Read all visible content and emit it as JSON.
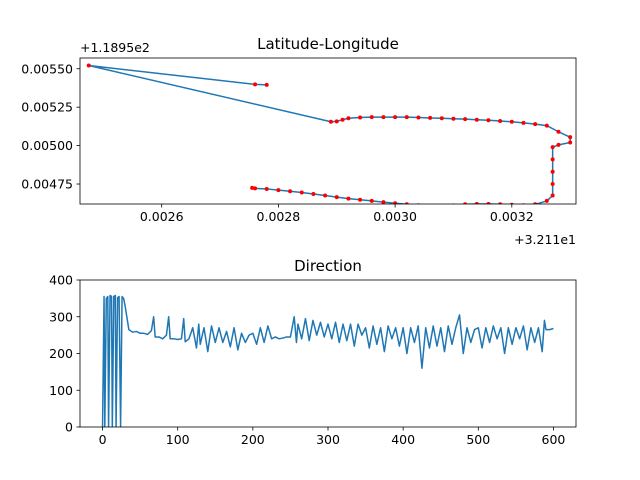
{
  "chart_data": [
    {
      "type": "scatter",
      "title": "Latitude-Longitude",
      "x_offset_label": "+3.211e1",
      "y_offset_label": "+1.1895e2",
      "xlim": [
        0.00246,
        0.00331
      ],
      "ylim": [
        0.00462,
        0.00557
      ],
      "x_ticks": [
        "0.0026",
        "0.0028",
        "0.0030",
        "0.0032"
      ],
      "x_tick_values": [
        0.0026,
        0.0028,
        0.003,
        0.0032
      ],
      "y_ticks": [
        "0.00475",
        "0.00500",
        "0.00525",
        "0.00550"
      ],
      "y_tick_values": [
        0.00475,
        0.005,
        0.00525,
        0.0055
      ],
      "line_color": "#1f77b4",
      "marker_color": "#ff0000",
      "x": [
        0.00278,
        0.00276,
        0.002475,
        0.00289,
        0.0029,
        0.00291,
        0.00292,
        0.00294,
        0.00296,
        0.00298,
        0.003,
        0.00302,
        0.00304,
        0.00306,
        0.00308,
        0.0031,
        0.00312,
        0.00314,
        0.00316,
        0.00318,
        0.0032,
        0.00322,
        0.00324,
        0.00326,
        0.00328,
        0.0033,
        0.0033,
        0.00328,
        0.00327,
        0.00327,
        0.00327,
        0.00327,
        0.00327,
        0.00326,
        0.00324,
        0.00322,
        0.0032,
        0.00318,
        0.00316,
        0.00314,
        0.00312,
        0.0031,
        0.00308,
        0.00306,
        0.00304,
        0.00302,
        0.003,
        0.00298,
        0.00296,
        0.00294,
        0.00292,
        0.0029,
        0.00288,
        0.00286,
        0.00284,
        0.00282,
        0.0028,
        0.00278,
        0.00276,
        0.002755
      ],
      "y": [
        0.005395,
        0.005398,
        0.005521,
        0.005155,
        0.005158,
        0.005168,
        0.005178,
        0.005183,
        0.005185,
        0.005185,
        0.005185,
        0.005185,
        0.005183,
        0.00518,
        0.005178,
        0.005175,
        0.005172,
        0.005168,
        0.005165,
        0.00516,
        0.005155,
        0.005148,
        0.00514,
        0.00513,
        0.00509,
        0.005055,
        0.00502,
        0.005005,
        0.00499,
        0.00491,
        0.00483,
        0.00475,
        0.004675,
        0.00464,
        0.004618,
        0.004612,
        0.004615,
        0.004618,
        0.00462,
        0.00462,
        0.004618,
        0.00461,
        0.004605,
        0.004605,
        0.004612,
        0.004618,
        0.004625,
        0.004632,
        0.00464,
        0.004648,
        0.004655,
        0.004665,
        0.004675,
        0.004685,
        0.004695,
        0.004703,
        0.00471,
        0.004718,
        0.004722,
        0.004725
      ]
    },
    {
      "type": "line",
      "title": "Direction",
      "xlim": [
        -30,
        630
      ],
      "ylim": [
        0,
        400
      ],
      "x_ticks": [
        "0",
        "100",
        "200",
        "300",
        "400",
        "500",
        "600"
      ],
      "x_tick_values": [
        0,
        100,
        200,
        300,
        400,
        500,
        600
      ],
      "y_ticks": [
        "0",
        "100",
        "200",
        "300",
        "400"
      ],
      "y_tick_values": [
        0,
        100,
        200,
        300,
        400
      ],
      "line_color": "#1f77b4",
      "x": [
        0,
        2,
        3,
        5,
        7,
        8,
        10,
        12,
        13,
        15,
        17,
        18,
        20,
        22,
        24,
        26,
        28,
        30,
        35,
        40,
        45,
        50,
        55,
        60,
        65,
        68,
        70,
        75,
        80,
        85,
        88,
        90,
        95,
        100,
        105,
        108,
        110,
        115,
        120,
        125,
        128,
        130,
        135,
        140,
        145,
        150,
        155,
        160,
        165,
        170,
        175,
        180,
        185,
        190,
        195,
        200,
        205,
        210,
        215,
        220,
        225,
        230,
        235,
        240,
        245,
        250,
        255,
        258,
        260,
        265,
        270,
        275,
        280,
        285,
        290,
        295,
        300,
        305,
        310,
        315,
        320,
        325,
        330,
        335,
        340,
        345,
        350,
        355,
        360,
        365,
        370,
        375,
        380,
        385,
        390,
        395,
        400,
        405,
        410,
        415,
        420,
        425,
        430,
        435,
        440,
        445,
        450,
        455,
        460,
        465,
        470,
        475,
        480,
        485,
        490,
        495,
        500,
        505,
        510,
        515,
        520,
        525,
        530,
        535,
        540,
        545,
        550,
        555,
        560,
        565,
        570,
        575,
        580,
        585,
        588,
        590,
        595,
        600
      ],
      "y": [
        0,
        355,
        0,
        350,
        355,
        0,
        358,
        355,
        0,
        355,
        358,
        0,
        352,
        355,
        0,
        355,
        350,
        330,
        265,
        258,
        260,
        255,
        255,
        252,
        262,
        300,
        245,
        245,
        240,
        250,
        300,
        240,
        240,
        238,
        240,
        295,
        232,
        240,
        270,
        215,
        280,
        225,
        270,
        205,
        275,
        230,
        270,
        230,
        260,
        218,
        270,
        210,
        255,
        230,
        250,
        255,
        225,
        270,
        230,
        275,
        240,
        245,
        240,
        242,
        245,
        245,
        300,
        230,
        280,
        240,
        295,
        235,
        290,
        250,
        285,
        245,
        280,
        240,
        285,
        230,
        280,
        235,
        280,
        220,
        280,
        250,
        270,
        215,
        275,
        225,
        270,
        205,
        275,
        240,
        270,
        220,
        270,
        200,
        270,
        230,
        275,
        160,
        270,
        215,
        275,
        220,
        270,
        205,
        275,
        225,
        270,
        305,
        200,
        270,
        230,
        265,
        270,
        215,
        270,
        230,
        275,
        240,
        270,
        200,
        270,
        225,
        270,
        240,
        275,
        210,
        270,
        230,
        270,
        205,
        290,
        265,
        265,
        268
      ]
    }
  ]
}
